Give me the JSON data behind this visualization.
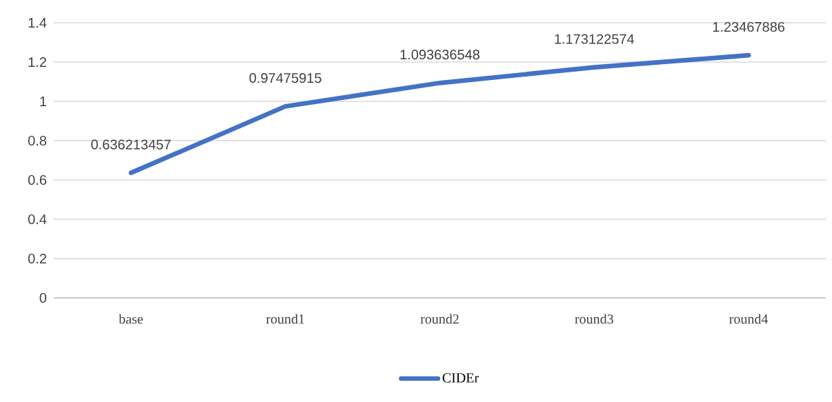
{
  "chart_data": {
    "type": "line",
    "categories": [
      "base",
      "round1",
      "round2",
      "round3",
      "round4"
    ],
    "series": [
      {
        "name": "CIDEr",
        "color": "#4472c4",
        "values": [
          0.636213457,
          0.97475915,
          1.093636548,
          1.173122574,
          1.23467886
        ]
      }
    ],
    "ylim": [
      0,
      1.4
    ],
    "yticks": [
      0,
      0.2,
      0.4,
      0.6,
      0.8,
      1,
      1.2,
      1.4
    ],
    "grid": "y",
    "legend": "bottom",
    "data_labels": true,
    "marker": "none",
    "line_style": "solid"
  }
}
